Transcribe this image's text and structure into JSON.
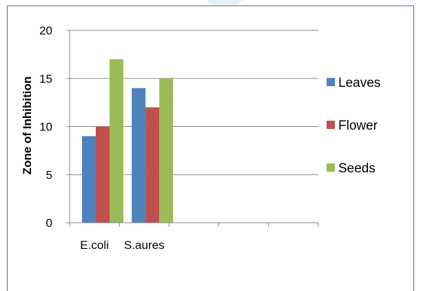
{
  "chart_data": {
    "type": "bar",
    "title": "",
    "xlabel": "",
    "ylabel": "Zone of Inhibition",
    "categories": [
      "E.coli",
      "S.aures",
      "",
      "",
      ""
    ],
    "series": [
      {
        "name": "Leaves",
        "values": [
          9,
          14,
          null,
          null,
          null
        ],
        "color": "#4f81bd"
      },
      {
        "name": "Flower",
        "values": [
          10,
          12,
          null,
          null,
          null
        ],
        "color": "#c0504d"
      },
      {
        "name": "Seeds",
        "values": [
          17,
          15,
          null,
          null,
          null
        ],
        "color": "#9bbb59"
      }
    ],
    "ylim": [
      0,
      20
    ],
    "yticks": [
      0,
      5,
      10,
      15,
      20
    ],
    "grid": true,
    "legend": "right"
  }
}
